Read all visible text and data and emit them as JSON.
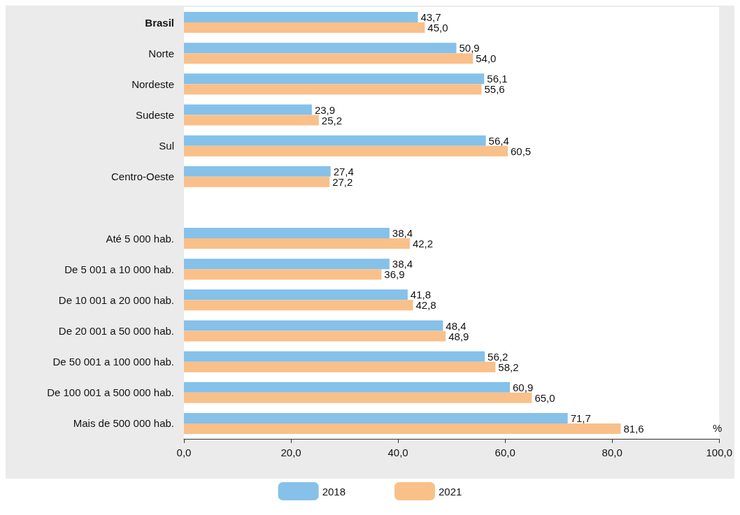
{
  "chart_data": {
    "type": "bar",
    "orientation": "horizontal",
    "xlabel": "%",
    "categories": [
      "Brasil",
      "Norte",
      "Nordeste",
      "Sudeste",
      "Sul",
      "Centro-Oeste",
      null,
      "Até 5 000 hab.",
      "De 5 001 a 10 000 hab.",
      "De 10 001 a 20 000 hab.",
      "De 20 001 a 50 000 hab.",
      "De 50 001 a 100 000 hab.",
      "De 100 001 a 500 000 hab.",
      "Mais de 500 000 hab."
    ],
    "series": [
      {
        "name": "2018",
        "color": "#85c1e9",
        "values": [
          43.7,
          50.9,
          56.1,
          23.9,
          56.4,
          27.4,
          null,
          38.4,
          38.4,
          41.8,
          48.4,
          56.2,
          60.9,
          71.7
        ],
        "value_labels": [
          "43,7",
          "50,9",
          "56,1",
          "23,9",
          "56,4",
          "27,4",
          null,
          "38,4",
          "38,4",
          "41,8",
          "48,4",
          "56,2",
          "60,9",
          "71,7"
        ]
      },
      {
        "name": "2021",
        "color": "#f9c08a",
        "values": [
          45.0,
          54.0,
          55.6,
          25.2,
          60.5,
          27.2,
          null,
          42.2,
          36.9,
          42.8,
          48.9,
          58.2,
          65.0,
          81.6
        ],
        "value_labels": [
          "45,0",
          "54,0",
          "55,6",
          "25,2",
          "60,5",
          "27,2",
          null,
          "42,2",
          "36,9",
          "42,8",
          "48,9",
          "58,2",
          "65,0",
          "81,6"
        ]
      }
    ],
    "xlim": [
      0,
      100
    ],
    "xticks": [
      {
        "value": 0,
        "label": "0,0"
      },
      {
        "value": 20,
        "label": "20,0"
      },
      {
        "value": 40,
        "label": "40,0"
      },
      {
        "value": 60,
        "label": "60,0"
      },
      {
        "value": 80,
        "label": "80,0"
      },
      {
        "value": 100,
        "label": "100,0"
      }
    ],
    "grid": false,
    "legend": "bottom"
  }
}
